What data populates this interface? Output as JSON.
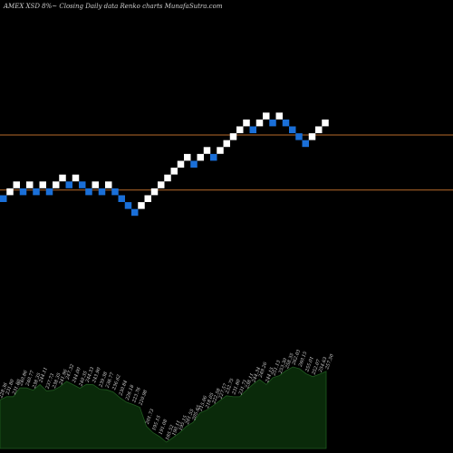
{
  "header": {
    "caption": "AMEX  XSD  8%~   Closing Daily data  Renko  charts MunafaSutra.com"
  },
  "colors": {
    "background": "#000000",
    "brick_up": "#ffffff",
    "brick_down": "#1a6fd8",
    "reference_line": "#b86a2a",
    "area_fill": "#0a2a0a",
    "area_edge": "#1f5a1f"
  },
  "chart_data": [
    {
      "type": "renko",
      "bricks": [
        {
          "level": 0,
          "dir": "down"
        },
        {
          "level": 1,
          "dir": "up"
        },
        {
          "level": 2,
          "dir": "up"
        },
        {
          "level": 1,
          "dir": "down"
        },
        {
          "level": 2,
          "dir": "up"
        },
        {
          "level": 1,
          "dir": "down"
        },
        {
          "level": 2,
          "dir": "up"
        },
        {
          "level": 1,
          "dir": "down"
        },
        {
          "level": 2,
          "dir": "up"
        },
        {
          "level": 3,
          "dir": "up"
        },
        {
          "level": 2,
          "dir": "down"
        },
        {
          "level": 3,
          "dir": "up"
        },
        {
          "level": 2,
          "dir": "down"
        },
        {
          "level": 1,
          "dir": "down"
        },
        {
          "level": 2,
          "dir": "up"
        },
        {
          "level": 1,
          "dir": "down"
        },
        {
          "level": 2,
          "dir": "up"
        },
        {
          "level": 1,
          "dir": "down"
        },
        {
          "level": 0,
          "dir": "down"
        },
        {
          "level": -1,
          "dir": "down"
        },
        {
          "level": -2,
          "dir": "down"
        },
        {
          "level": -1,
          "dir": "up"
        },
        {
          "level": 0,
          "dir": "up"
        },
        {
          "level": 1,
          "dir": "up"
        },
        {
          "level": 2,
          "dir": "up"
        },
        {
          "level": 3,
          "dir": "up"
        },
        {
          "level": 4,
          "dir": "up"
        },
        {
          "level": 5,
          "dir": "up"
        },
        {
          "level": 6,
          "dir": "up"
        },
        {
          "level": 5,
          "dir": "down"
        },
        {
          "level": 6,
          "dir": "up"
        },
        {
          "level": 7,
          "dir": "up"
        },
        {
          "level": 6,
          "dir": "down"
        },
        {
          "level": 7,
          "dir": "up"
        },
        {
          "level": 8,
          "dir": "up"
        },
        {
          "level": 9,
          "dir": "up"
        },
        {
          "level": 10,
          "dir": "up"
        },
        {
          "level": 11,
          "dir": "up"
        },
        {
          "level": 10,
          "dir": "down"
        },
        {
          "level": 11,
          "dir": "up"
        },
        {
          "level": 12,
          "dir": "up"
        },
        {
          "level": 11,
          "dir": "down"
        },
        {
          "level": 12,
          "dir": "up"
        },
        {
          "level": 11,
          "dir": "down"
        },
        {
          "level": 10,
          "dir": "down"
        },
        {
          "level": 9,
          "dir": "down"
        },
        {
          "level": 8,
          "dir": "down"
        },
        {
          "level": 9,
          "dir": "up"
        },
        {
          "level": 10,
          "dir": "up"
        },
        {
          "level": 11,
          "dir": "up"
        }
      ],
      "reference_lines": [
        {
          "level": 9.25
        },
        {
          "level": 1.25
        }
      ]
    },
    {
      "type": "area",
      "labels": [
        "228.36",
        "231.80",
        "231.80",
        "240.86",
        "240.77",
        "238.35",
        "244.11",
        "237.73",
        "238.35",
        "241.96",
        "247.32",
        "244.00",
        "240.35",
        "244.33",
        "243.90",
        "239.38",
        "238.77",
        "236.62",
        "230.84",
        "226.18",
        "223.76",
        "220.98",
        "201.73",
        "195.15",
        "191.08",
        "185.52",
        "190.11",
        "195.15",
        "201.55",
        "205.65",
        "215.06",
        "218.05",
        "222.58",
        "227.57",
        "232.75",
        "231.80",
        "231.71",
        "238.11",
        "244.34",
        "249.26",
        "244.15",
        "251.13",
        "253.30",
        "258.35",
        "262.03",
        "260.15",
        "255.01",
        "252.07",
        "254.63",
        "257.50"
      ]
    }
  ]
}
